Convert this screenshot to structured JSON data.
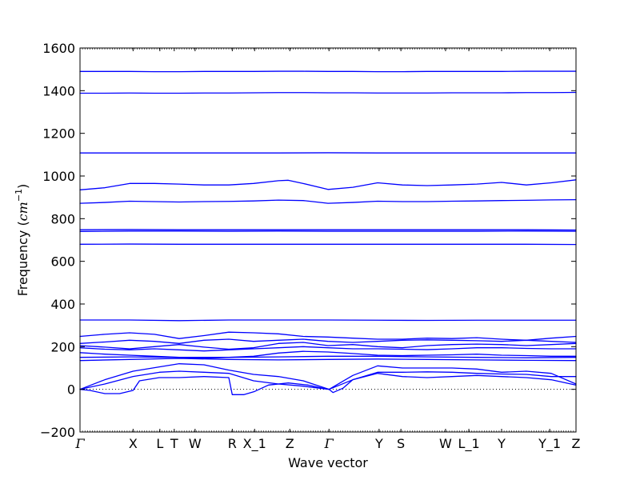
{
  "chart_data": {
    "type": "line",
    "xlabel": "Wave vector",
    "ylabel_prefix": "Frequency (",
    "ylabel_unit_base": "cm",
    "ylabel_unit_exp": "−1",
    "ylabel_suffix": ")",
    "ylim": [
      -200,
      1600
    ],
    "xlim": [
      0,
      1
    ],
    "yticks": [
      -200,
      0,
      200,
      400,
      600,
      800,
      1000,
      1200,
      1400,
      1600
    ],
    "y_tick_labels": [
      "−200",
      "0",
      "200",
      "400",
      "600",
      "800",
      "1000",
      "1200",
      "1400",
      "1600"
    ],
    "grid": false,
    "zero_line": "dotted",
    "band_color": "#0000ff",
    "hsym_points": [
      {
        "label": "Γ",
        "x": 0.0
      },
      {
        "label": "X",
        "x": 0.107
      },
      {
        "label": "L",
        "x": 0.161
      },
      {
        "label": "T",
        "x": 0.19
      },
      {
        "label": "W",
        "x": 0.232
      },
      {
        "label": "R",
        "x": 0.307
      },
      {
        "label": "X_1",
        "x": 0.352
      },
      {
        "label": "Z",
        "x": 0.423
      },
      {
        "label": "Γ",
        "x": 0.502
      },
      {
        "label": "Y",
        "x": 0.603
      },
      {
        "label": "S",
        "x": 0.647
      },
      {
        "label": "W",
        "x": 0.737
      },
      {
        "label": "L_1",
        "x": 0.784
      },
      {
        "label": "Y",
        "x": 0.85
      },
      {
        "label": "Y_1",
        "x": 0.947
      },
      {
        "label": "Z",
        "x": 1.0
      }
    ],
    "series": [
      {
        "x": [
          0,
          0.05,
          0.1,
          0.15,
          0.2,
          0.25,
          0.3,
          0.35,
          0.4,
          0.45,
          0.5,
          0.55,
          0.6,
          0.65,
          0.7,
          0.75,
          0.8,
          0.85,
          0.9,
          0.95,
          1.0
        ],
        "values": [
          1490,
          1490,
          1490,
          1489,
          1489,
          1490,
          1490,
          1490,
          1491,
          1491,
          1490,
          1490,
          1489,
          1489,
          1490,
          1490,
          1490,
          1490,
          1491,
          1491,
          1491
        ]
      },
      {
        "x": [
          0,
          0.05,
          0.1,
          0.15,
          0.2,
          0.25,
          0.3,
          0.35,
          0.4,
          0.45,
          0.5,
          0.55,
          0.6,
          0.65,
          0.7,
          0.75,
          0.8,
          0.85,
          0.9,
          0.95,
          1.0
        ],
        "values": [
          1388,
          1388,
          1389,
          1388,
          1388,
          1389,
          1389,
          1390,
          1391,
          1391,
          1390,
          1390,
          1389,
          1389,
          1389,
          1390,
          1390,
          1390,
          1391,
          1391,
          1392
        ]
      },
      {
        "x": [
          0,
          0.1,
          0.2,
          0.3,
          0.4,
          0.5,
          0.6,
          0.7,
          0.8,
          0.9,
          1.0
        ],
        "values": [
          1108,
          1108,
          1108,
          1108,
          1108,
          1109,
          1108,
          1108,
          1108,
          1108,
          1108
        ]
      },
      {
        "x": [
          0,
          0.05,
          0.1,
          0.15,
          0.2,
          0.25,
          0.3,
          0.35,
          0.4,
          0.42,
          0.45,
          0.5,
          0.55,
          0.6,
          0.65,
          0.7,
          0.75,
          0.8,
          0.85,
          0.9,
          0.95,
          1.0
        ],
        "values": [
          935,
          945,
          965,
          965,
          962,
          958,
          958,
          965,
          978,
          980,
          965,
          937,
          947,
          968,
          958,
          955,
          958,
          962,
          970,
          958,
          968,
          982
        ]
      },
      {
        "x": [
          0,
          0.05,
          0.1,
          0.15,
          0.2,
          0.25,
          0.3,
          0.35,
          0.4,
          0.45,
          0.5,
          0.55,
          0.6,
          0.65,
          0.7,
          0.75,
          0.8,
          0.85,
          0.9,
          0.95,
          1.0
        ],
        "values": [
          872,
          876,
          882,
          880,
          878,
          880,
          881,
          883,
          887,
          885,
          872,
          876,
          882,
          880,
          880,
          882,
          883,
          885,
          886,
          888,
          889
        ]
      },
      {
        "x": [
          0,
          0.1,
          0.2,
          0.3,
          0.4,
          0.5,
          0.6,
          0.7,
          0.8,
          0.9,
          1.0
        ],
        "values": [
          748,
          749,
          748,
          748,
          748,
          748,
          748,
          748,
          748,
          748,
          747
        ]
      },
      {
        "x": [
          0,
          0.1,
          0.2,
          0.3,
          0.4,
          0.5,
          0.6,
          0.7,
          0.8,
          0.9,
          1.0
        ],
        "values": [
          740,
          742,
          742,
          741,
          742,
          741,
          741,
          741,
          741,
          742,
          741
        ]
      },
      {
        "x": [
          0,
          0.1,
          0.2,
          0.3,
          0.4,
          0.5,
          0.6,
          0.7,
          0.8,
          0.9,
          1.0
        ],
        "values": [
          680,
          681,
          680,
          680,
          680,
          680,
          680,
          680,
          680,
          680,
          679
        ]
      },
      {
        "x": [
          0,
          0.1,
          0.2,
          0.3,
          0.4,
          0.5,
          0.6,
          0.7,
          0.8,
          0.9,
          1.0
        ],
        "values": [
          325,
          325,
          322,
          325,
          325,
          325,
          324,
          323,
          324,
          324,
          324
        ]
      },
      {
        "x": [
          0,
          0.05,
          0.1,
          0.15,
          0.2,
          0.25,
          0.3,
          0.35,
          0.4,
          0.45,
          0.5,
          0.55,
          0.6,
          0.65,
          0.7,
          0.75,
          0.8,
          0.85,
          0.9,
          0.95,
          1.0
        ],
        "values": [
          248,
          258,
          265,
          258,
          238,
          252,
          268,
          265,
          260,
          248,
          245,
          240,
          235,
          235,
          240,
          238,
          242,
          235,
          230,
          240,
          248
        ]
      },
      {
        "x": [
          0,
          0.05,
          0.1,
          0.15,
          0.2,
          0.25,
          0.3,
          0.35,
          0.4,
          0.45,
          0.5,
          0.55,
          0.6,
          0.65,
          0.7,
          0.75,
          0.8,
          0.85,
          0.9,
          0.95,
          1.0
        ],
        "values": [
          215,
          222,
          230,
          225,
          215,
          230,
          235,
          225,
          230,
          235,
          225,
          220,
          225,
          230,
          232,
          230,
          228,
          225,
          230,
          225,
          220
        ]
      },
      {
        "x": [
          0,
          0.05,
          0.1,
          0.15,
          0.2,
          0.25,
          0.3,
          0.35,
          0.4,
          0.45,
          0.5,
          0.55,
          0.6,
          0.65,
          0.7,
          0.75,
          0.8,
          0.85,
          0.9,
          0.95,
          1.0
        ],
        "values": [
          205,
          198,
          190,
          200,
          210,
          198,
          188,
          195,
          215,
          220,
          205,
          210,
          200,
          195,
          205,
          210,
          212,
          210,
          205,
          210,
          215
        ]
      },
      {
        "x": [
          0,
          0.05,
          0.1,
          0.15,
          0.2,
          0.25,
          0.3,
          0.35,
          0.4,
          0.45,
          0.5,
          0.55,
          0.6,
          0.65,
          0.7,
          0.75,
          0.8,
          0.85,
          0.9,
          0.95,
          1.0
        ],
        "values": [
          195,
          188,
          185,
          190,
          185,
          180,
          185,
          190,
          195,
          200,
          195,
          190,
          190,
          188,
          186,
          190,
          195,
          195,
          192,
          190,
          190
        ]
      },
      {
        "x": [
          0,
          0.05,
          0.1,
          0.15,
          0.2,
          0.25,
          0.3,
          0.35,
          0.4,
          0.45,
          0.5,
          0.55,
          0.6,
          0.65,
          0.7,
          0.75,
          0.8,
          0.85,
          0.9,
          0.95,
          1.0
        ],
        "values": [
          172,
          165,
          160,
          155,
          150,
          145,
          150,
          155,
          170,
          178,
          175,
          168,
          160,
          158,
          160,
          162,
          165,
          160,
          158,
          155,
          155
        ]
      },
      {
        "x": [
          0,
          0.1,
          0.2,
          0.3,
          0.4,
          0.5,
          0.6,
          0.7,
          0.8,
          0.9,
          1.0
        ],
        "values": [
          150,
          152,
          150,
          150,
          152,
          155,
          155,
          152,
          150,
          148,
          150
        ]
      },
      {
        "x": [
          0,
          0.1,
          0.2,
          0.3,
          0.4,
          0.5,
          0.6,
          0.7,
          0.8,
          0.9,
          1.0
        ],
        "values": [
          135,
          140,
          145,
          140,
          138,
          140,
          142,
          140,
          138,
          136,
          135
        ]
      },
      {
        "x": [
          0,
          0.05,
          0.107,
          0.16,
          0.2,
          0.25,
          0.3,
          0.35,
          0.4,
          0.45,
          0.502,
          0.55,
          0.6,
          0.65,
          0.7,
          0.75,
          0.8,
          0.85,
          0.9,
          0.95,
          1.0
        ],
        "values": [
          0,
          45,
          85,
          105,
          120,
          115,
          90,
          70,
          60,
          40,
          0,
          65,
          110,
          100,
          100,
          100,
          95,
          80,
          85,
          75,
          25
        ]
      },
      {
        "x": [
          0,
          0.05,
          0.107,
          0.16,
          0.2,
          0.25,
          0.3,
          0.35,
          0.4,
          0.45,
          0.502,
          0.55,
          0.6,
          0.65,
          0.7,
          0.75,
          0.8,
          0.85,
          0.9,
          0.95,
          1.0
        ],
        "values": [
          0,
          25,
          60,
          80,
          85,
          80,
          75,
          40,
          25,
          15,
          0,
          45,
          80,
          80,
          82,
          80,
          75,
          72,
          70,
          60,
          60
        ]
      },
      {
        "x": [
          0,
          0.02,
          0.05,
          0.08,
          0.107,
          0.12,
          0.16,
          0.2,
          0.25,
          0.3,
          0.307,
          0.33,
          0.352,
          0.38,
          0.42,
          0.46,
          0.49,
          0.502,
          0.51,
          0.53,
          0.55,
          0.6,
          0.65,
          0.7,
          0.75,
          0.8,
          0.85,
          0.9,
          0.95,
          1.0
        ],
        "values": [
          0,
          -5,
          -20,
          -20,
          -5,
          40,
          55,
          55,
          60,
          55,
          -25,
          -25,
          -10,
          20,
          30,
          20,
          5,
          0,
          -15,
          5,
          45,
          75,
          60,
          55,
          60,
          65,
          60,
          55,
          45,
          20
        ]
      }
    ]
  }
}
